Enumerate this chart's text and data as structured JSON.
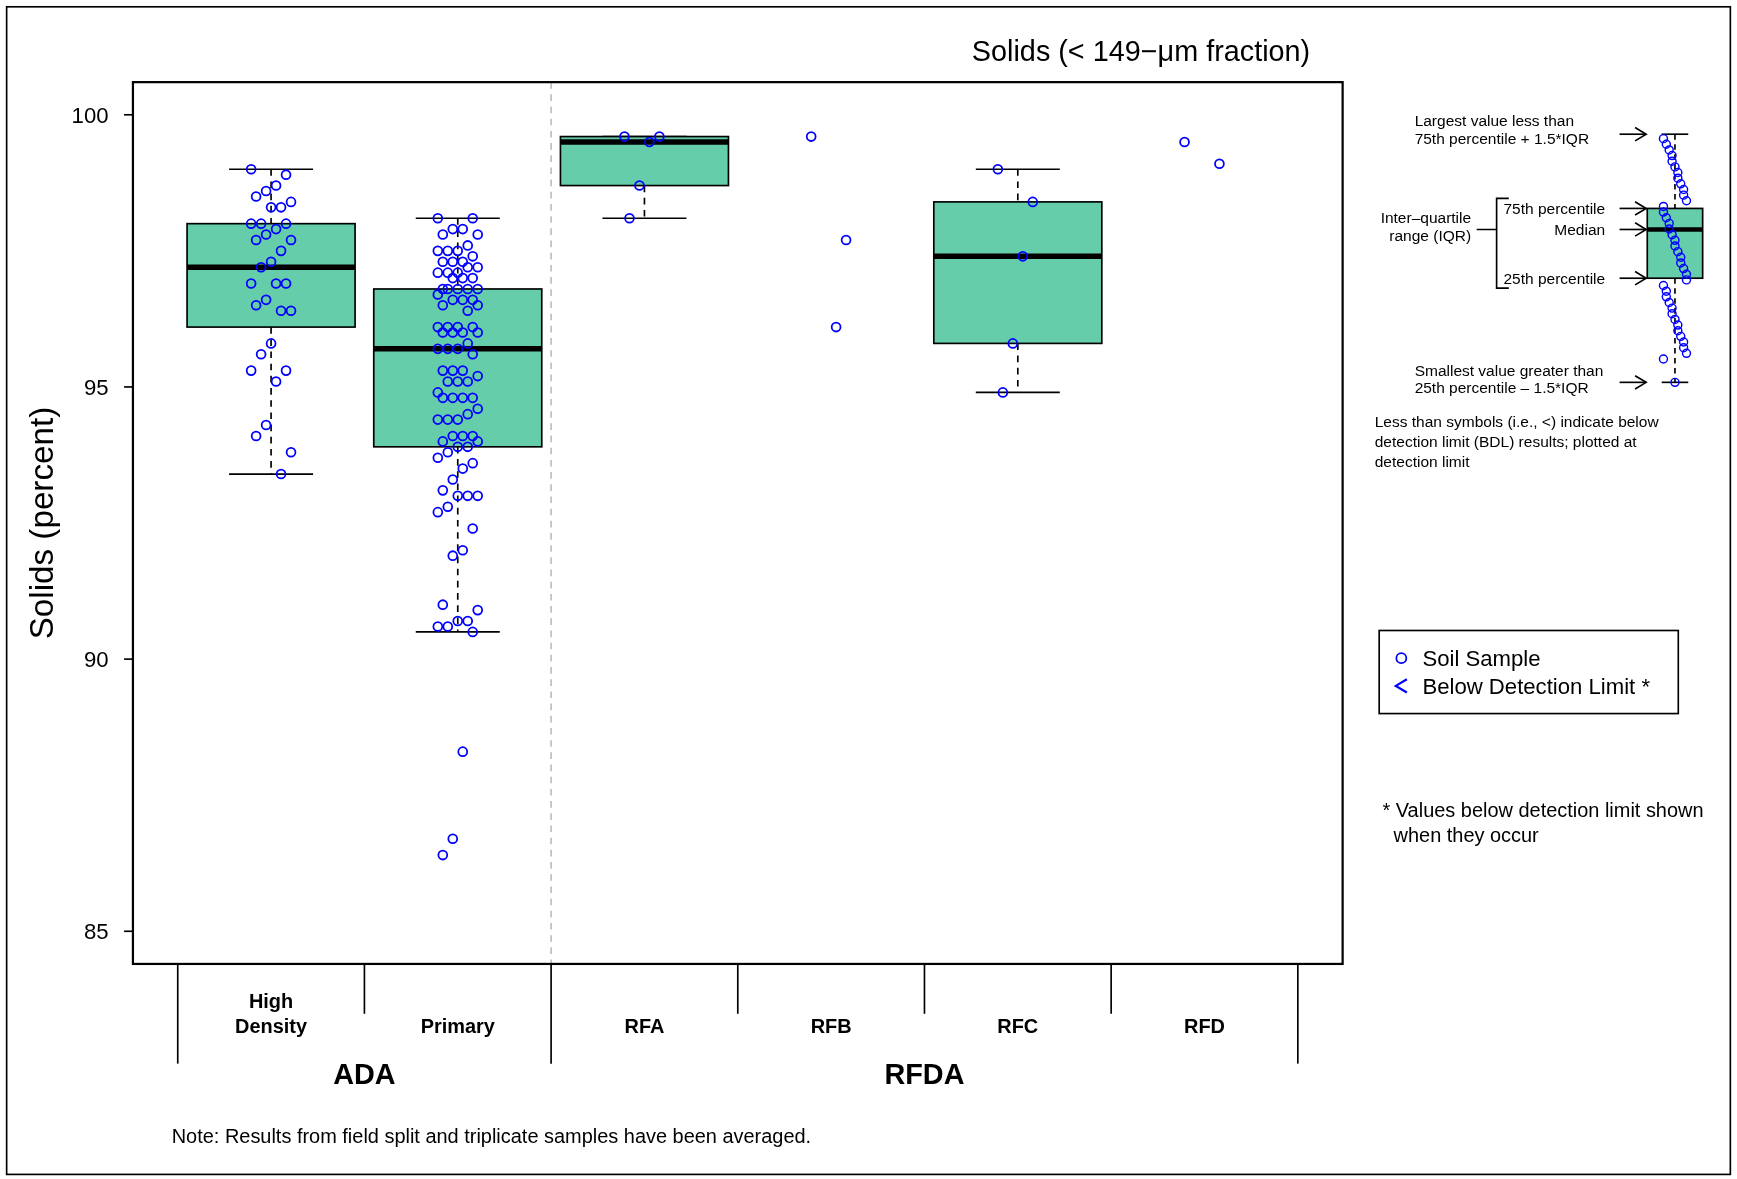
{
  "chart_data": {
    "type": "box",
    "title": "Solids (< 149−μm fraction)",
    "ylabel": "Solids (percent)",
    "categories": [
      "High Density",
      "Primary",
      "RFA",
      "RFB",
      "RFC",
      "RFD"
    ],
    "ylim": [
      84.4,
      100.6
    ],
    "yticks": [
      85,
      90,
      95,
      100
    ],
    "color": "#66cdaa",
    "legend": "right",
    "boxes": [
      {
        "low": 93.4,
        "q1": 96.1,
        "median": 97.2,
        "q3": 98.0,
        "high": 99.0
      },
      {
        "low": 90.5,
        "q1": 93.9,
        "median": 95.7,
        "q3": 96.8,
        "high": 98.1
      },
      {
        "low": 98.1,
        "q1": 98.7,
        "median": 99.5,
        "q3": 99.6,
        "high": 99.6
      },
      null,
      {
        "low": 94.9,
        "q1": 95.8,
        "median": 97.4,
        "q3": 98.4,
        "high": 99.0
      },
      null
    ],
    "series": [
      {
        "name": "Soil Sample",
        "type": "scatter",
        "color": "#0000ff",
        "marker": "circle",
        "x": [
          "High Density",
          "High Density",
          "High Density",
          "High Density",
          "High Density",
          "High Density",
          "High Density",
          "High Density",
          "High Density",
          "High Density",
          "High Density",
          "High Density",
          "High Density",
          "High Density",
          "High Density",
          "High Density",
          "High Density",
          "High Density",
          "High Density",
          "High Density",
          "High Density",
          "High Density",
          "High Density",
          "High Density",
          "High Density",
          "High Density",
          "High Density",
          "High Density",
          "High Density",
          "High Density",
          "High Density",
          "High Density",
          "High Density",
          "High Density",
          "Primary",
          "Primary",
          "Primary",
          "Primary",
          "Primary",
          "Primary",
          "Primary",
          "Primary",
          "Primary",
          "Primary",
          "Primary",
          "Primary",
          "Primary",
          "Primary",
          "Primary",
          "Primary",
          "Primary",
          "Primary",
          "Primary",
          "Primary",
          "Primary",
          "Primary",
          "Primary",
          "Primary",
          "Primary",
          "Primary",
          "Primary",
          "Primary",
          "Primary",
          "Primary",
          "Primary",
          "Primary",
          "Primary",
          "Primary",
          "Primary",
          "Primary",
          "Primary",
          "Primary",
          "Primary",
          "Primary",
          "Primary",
          "Primary",
          "Primary",
          "Primary",
          "Primary",
          "Primary",
          "Primary",
          "Primary",
          "Primary",
          "Primary",
          "Primary",
          "Primary",
          "Primary",
          "Primary",
          "Primary",
          "Primary",
          "Primary",
          "Primary",
          "Primary",
          "Primary",
          "Primary",
          "Primary",
          "Primary",
          "Primary",
          "Primary",
          "Primary",
          "Primary",
          "Primary",
          "Primary",
          "Primary",
          "Primary",
          "Primary",
          "Primary",
          "Primary",
          "Primary",
          "Primary",
          "Primary",
          "Primary",
          "Primary",
          "Primary",
          "Primary",
          "Primary",
          "Primary",
          "Primary",
          "Primary",
          "Primary",
          "Primary",
          "Primary",
          "Primary",
          "Primary",
          "Primary",
          "Primary",
          "Primary",
          "Primary",
          "Primary",
          "RFA",
          "RFA",
          "RFA",
          "RFA",
          "RFA",
          "RFB",
          "RFB",
          "RFB",
          "RFC",
          "RFC",
          "RFC",
          "RFC",
          "RFC",
          "RFD",
          "RFD"
        ],
        "values": [
          99.0,
          98.9,
          98.7,
          98.6,
          98.5,
          98.4,
          98.3,
          98.3,
          98.0,
          98.0,
          98.0,
          97.9,
          97.8,
          97.7,
          97.7,
          97.5,
          97.3,
          97.2,
          96.9,
          96.9,
          96.9,
          96.6,
          96.5,
          96.4,
          96.4,
          95.8,
          95.6,
          95.3,
          95.3,
          95.1,
          94.3,
          94.1,
          93.8,
          93.4,
          98.1,
          98.1,
          97.9,
          97.9,
          97.8,
          97.8,
          97.6,
          97.5,
          97.5,
          97.5,
          97.4,
          97.3,
          97.3,
          97.3,
          97.2,
          97.2,
          97.1,
          97.1,
          97.1,
          97.0,
          97.0,
          97.0,
          96.8,
          96.8,
          96.8,
          96.8,
          96.8,
          96.7,
          96.6,
          96.6,
          96.6,
          96.5,
          96.5,
          96.4,
          96.1,
          96.1,
          96.1,
          96.1,
          96.0,
          96.0,
          96.0,
          96.0,
          95.8,
          95.7,
          95.7,
          95.7,
          95.6,
          95.3,
          95.3,
          95.3,
          95.2,
          95.1,
          95.1,
          95.1,
          94.9,
          94.8,
          94.8,
          94.8,
          94.8,
          94.6,
          94.5,
          94.4,
          94.4,
          94.4,
          94.1,
          94.1,
          94.1,
          94.0,
          94.0,
          93.9,
          93.9,
          93.8,
          93.7,
          93.6,
          93.5,
          93.3,
          93.1,
          93.0,
          93.0,
          93.0,
          92.8,
          92.7,
          92.4,
          92.0,
          91.9,
          91.0,
          90.9,
          90.7,
          90.7,
          90.6,
          90.6,
          90.5,
          88.3,
          86.7,
          86.4,
          99.6,
          99.6,
          99.5,
          98.7,
          98.1,
          99.6,
          97.7,
          96.1,
          99.0,
          98.4,
          97.4,
          95.8,
          94.9,
          99.5,
          99.1
        ]
      },
      {
        "name": "Below Detection Limit *",
        "type": "scatter",
        "color": "#0000ff",
        "values": [
          null,
          null,
          null,
          null,
          null,
          null
        ]
      }
    ],
    "annotations": [
      "ADA",
      "RFDA",
      "Note: Results from field split and triplicate samples have been averaged.",
      "Largest value less than\n75th percentile + 1.5*IQR",
      "75th percentile",
      "Median",
      "25th percentile",
      "Inter–quartile\nrange (IQR)",
      "Smallest value greater than\n25th percentile – 1.5*IQR",
      "Less than symbols (i.e., <) indicate below\ndetection limit (BDL) results; plotted at\ndetection limit",
      "* Values below detection limit shown\n  when they occur"
    ]
  }
}
